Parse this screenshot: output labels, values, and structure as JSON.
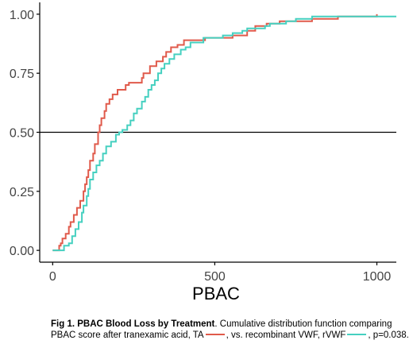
{
  "chart_data": {
    "type": "line",
    "subtype": "step-ecdf",
    "xlabel": "PBAC",
    "ylabel": "",
    "xlim": [
      -40,
      1060
    ],
    "ylim": [
      -0.05,
      1.05
    ],
    "x_ticks": [
      0,
      500,
      1000
    ],
    "x_tick_labels": [
      "0",
      "500",
      "1000"
    ],
    "y_ticks": [
      0.0,
      0.25,
      0.5,
      0.75,
      1.0
    ],
    "y_tick_labels": [
      "0.00",
      "0.25",
      "0.50",
      "0.75",
      "1.00"
    ],
    "reference_line": {
      "y": 0.5,
      "color": "#000000"
    },
    "grid": false,
    "legend": "none",
    "series": [
      {
        "color": "#e05a4b",
        "points": [
          [
            0,
            0
          ],
          [
            20,
            0
          ],
          [
            20,
            0.02
          ],
          [
            25,
            0.02
          ],
          [
            25,
            0.03
          ],
          [
            30,
            0.03
          ],
          [
            30,
            0.05
          ],
          [
            40,
            0.05
          ],
          [
            40,
            0.07
          ],
          [
            50,
            0.07
          ],
          [
            50,
            0.1
          ],
          [
            55,
            0.1
          ],
          [
            55,
            0.12
          ],
          [
            65,
            0.12
          ],
          [
            65,
            0.15
          ],
          [
            75,
            0.15
          ],
          [
            75,
            0.18
          ],
          [
            85,
            0.18
          ],
          [
            85,
            0.21
          ],
          [
            95,
            0.21
          ],
          [
            95,
            0.25
          ],
          [
            100,
            0.25
          ],
          [
            100,
            0.28
          ],
          [
            105,
            0.28
          ],
          [
            105,
            0.31
          ],
          [
            110,
            0.31
          ],
          [
            110,
            0.34
          ],
          [
            115,
            0.34
          ],
          [
            115,
            0.38
          ],
          [
            125,
            0.38
          ],
          [
            125,
            0.41
          ],
          [
            130,
            0.41
          ],
          [
            130,
            0.45
          ],
          [
            140,
            0.45
          ],
          [
            140,
            0.5
          ],
          [
            145,
            0.5
          ],
          [
            145,
            0.53
          ],
          [
            150,
            0.53
          ],
          [
            150,
            0.56
          ],
          [
            160,
            0.56
          ],
          [
            160,
            0.59
          ],
          [
            165,
            0.59
          ],
          [
            165,
            0.62
          ],
          [
            175,
            0.62
          ],
          [
            175,
            0.64
          ],
          [
            185,
            0.64
          ],
          [
            185,
            0.66
          ],
          [
            200,
            0.66
          ],
          [
            200,
            0.68
          ],
          [
            225,
            0.68
          ],
          [
            225,
            0.7
          ],
          [
            235,
            0.7
          ],
          [
            235,
            0.71
          ],
          [
            275,
            0.71
          ],
          [
            275,
            0.73
          ],
          [
            280,
            0.73
          ],
          [
            280,
            0.75
          ],
          [
            300,
            0.75
          ],
          [
            300,
            0.78
          ],
          [
            320,
            0.78
          ],
          [
            320,
            0.8
          ],
          [
            340,
            0.8
          ],
          [
            340,
            0.82
          ],
          [
            350,
            0.82
          ],
          [
            350,
            0.84
          ],
          [
            365,
            0.84
          ],
          [
            365,
            0.86
          ],
          [
            385,
            0.86
          ],
          [
            385,
            0.87
          ],
          [
            405,
            0.87
          ],
          [
            405,
            0.89
          ],
          [
            470,
            0.89
          ],
          [
            470,
            0.9
          ],
          [
            555,
            0.9
          ],
          [
            555,
            0.91
          ],
          [
            600,
            0.91
          ],
          [
            600,
            0.93
          ],
          [
            625,
            0.93
          ],
          [
            625,
            0.95
          ],
          [
            660,
            0.95
          ],
          [
            660,
            0.96
          ],
          [
            700,
            0.96
          ],
          [
            700,
            0.97
          ],
          [
            800,
            0.97
          ],
          [
            800,
            0.98
          ],
          [
            880,
            0.98
          ],
          [
            880,
            0.99
          ],
          [
            1000,
            0.99
          ],
          [
            1000,
            1.0
          ]
        ]
      },
      {
        "color": "#45d0c0",
        "points": [
          [
            0,
            0
          ],
          [
            35,
            0
          ],
          [
            35,
            0.02
          ],
          [
            50,
            0.02
          ],
          [
            50,
            0.03
          ],
          [
            60,
            0.03
          ],
          [
            60,
            0.06
          ],
          [
            70,
            0.06
          ],
          [
            70,
            0.09
          ],
          [
            80,
            0.09
          ],
          [
            80,
            0.12
          ],
          [
            90,
            0.12
          ],
          [
            90,
            0.16
          ],
          [
            95,
            0.16
          ],
          [
            95,
            0.19
          ],
          [
            105,
            0.19
          ],
          [
            105,
            0.23
          ],
          [
            110,
            0.23
          ],
          [
            110,
            0.26
          ],
          [
            115,
            0.26
          ],
          [
            115,
            0.3
          ],
          [
            125,
            0.3
          ],
          [
            125,
            0.33
          ],
          [
            135,
            0.33
          ],
          [
            135,
            0.36
          ],
          [
            145,
            0.36
          ],
          [
            145,
            0.38
          ],
          [
            155,
            0.38
          ],
          [
            155,
            0.41
          ],
          [
            165,
            0.41
          ],
          [
            165,
            0.44
          ],
          [
            180,
            0.44
          ],
          [
            180,
            0.46
          ],
          [
            195,
            0.46
          ],
          [
            195,
            0.49
          ],
          [
            205,
            0.49
          ],
          [
            205,
            0.5
          ],
          [
            215,
            0.5
          ],
          [
            215,
            0.51
          ],
          [
            230,
            0.51
          ],
          [
            230,
            0.53
          ],
          [
            240,
            0.53
          ],
          [
            240,
            0.55
          ],
          [
            250,
            0.55
          ],
          [
            250,
            0.58
          ],
          [
            260,
            0.58
          ],
          [
            260,
            0.6
          ],
          [
            275,
            0.6
          ],
          [
            275,
            0.63
          ],
          [
            285,
            0.63
          ],
          [
            285,
            0.65
          ],
          [
            295,
            0.65
          ],
          [
            295,
            0.68
          ],
          [
            305,
            0.68
          ],
          [
            305,
            0.7
          ],
          [
            315,
            0.7
          ],
          [
            315,
            0.72
          ],
          [
            325,
            0.72
          ],
          [
            325,
            0.75
          ],
          [
            335,
            0.75
          ],
          [
            335,
            0.77
          ],
          [
            345,
            0.77
          ],
          [
            345,
            0.79
          ],
          [
            360,
            0.79
          ],
          [
            360,
            0.81
          ],
          [
            375,
            0.81
          ],
          [
            375,
            0.83
          ],
          [
            395,
            0.83
          ],
          [
            395,
            0.85
          ],
          [
            410,
            0.85
          ],
          [
            410,
            0.86
          ],
          [
            425,
            0.86
          ],
          [
            425,
            0.88
          ],
          [
            465,
            0.88
          ],
          [
            465,
            0.9
          ],
          [
            525,
            0.9
          ],
          [
            525,
            0.91
          ],
          [
            555,
            0.91
          ],
          [
            555,
            0.92
          ],
          [
            585,
            0.92
          ],
          [
            585,
            0.93
          ],
          [
            600,
            0.93
          ],
          [
            600,
            0.94
          ],
          [
            655,
            0.94
          ],
          [
            655,
            0.95
          ],
          [
            670,
            0.95
          ],
          [
            670,
            0.96
          ],
          [
            720,
            0.96
          ],
          [
            720,
            0.97
          ],
          [
            750,
            0.97
          ],
          [
            750,
            0.98
          ],
          [
            800,
            0.98
          ],
          [
            800,
            0.99
          ],
          [
            1060,
            0.99
          ]
        ]
      }
    ]
  },
  "caption": {
    "bold": "Fig 1. PBAC Blood Loss by Treatment",
    "part1": ". Cumulative distribution function comparing PBAC score after tranexamic acid, TA",
    "part2": ", vs. recombinant VWF, rVWF",
    "part3": ", p=0.038."
  }
}
